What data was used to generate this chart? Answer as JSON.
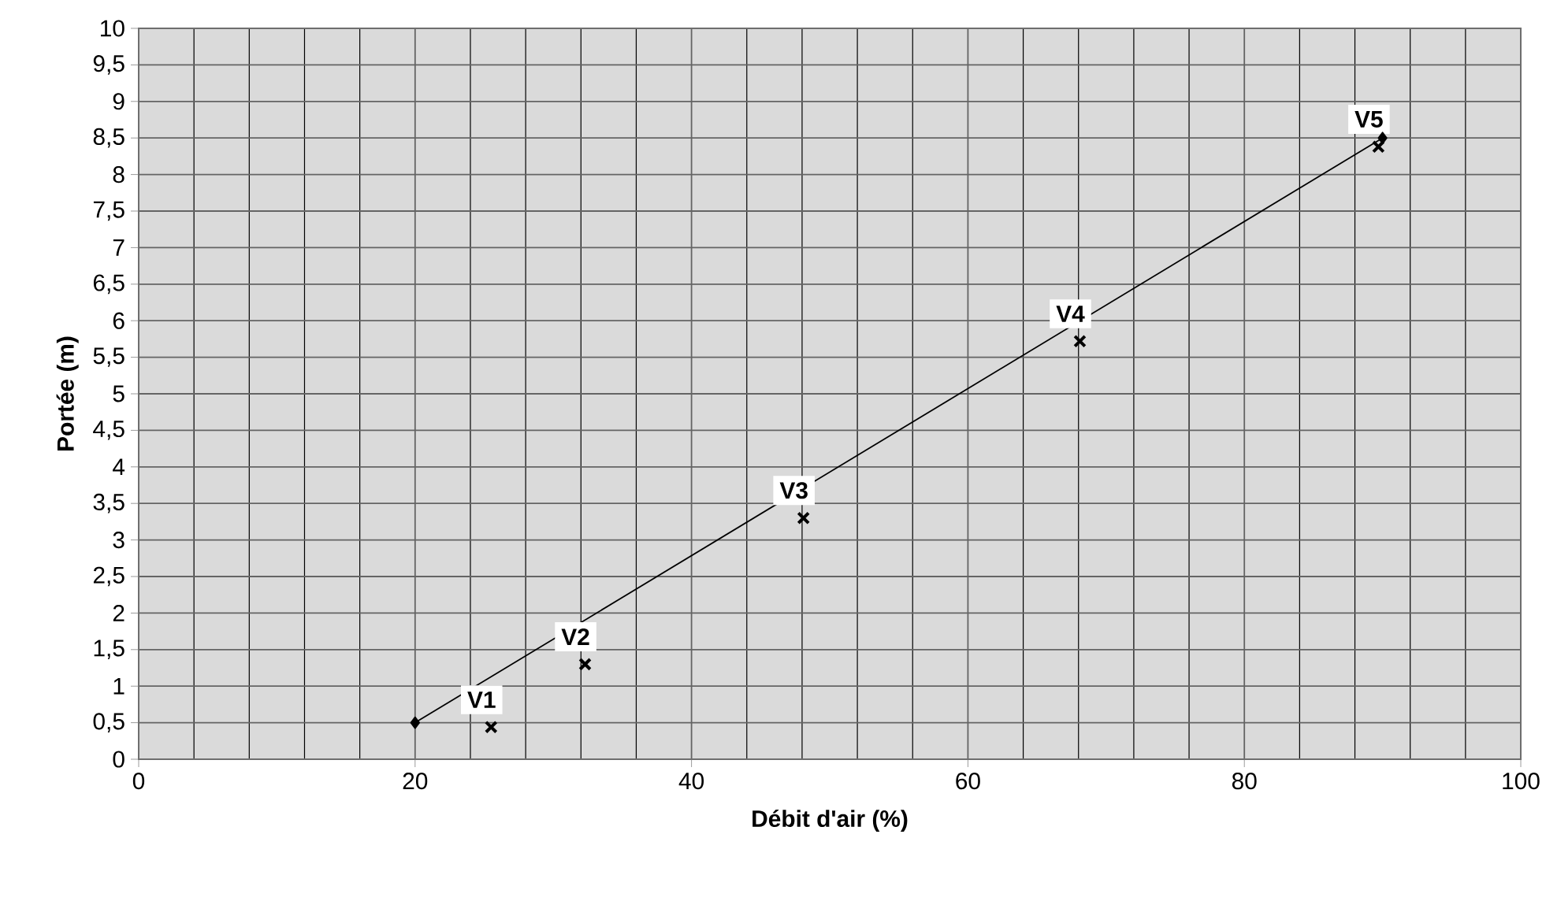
{
  "chart_data": {
    "type": "line",
    "xlabel": "Débit d'air (%)",
    "ylabel": "Portée (m)",
    "xlim": [
      0,
      100
    ],
    "ylim": [
      0,
      10
    ],
    "xticks": [
      0,
      20,
      40,
      60,
      80,
      100
    ],
    "yticks": [
      0,
      {
        "value": 0.5,
        "label": "0,5"
      },
      1,
      {
        "value": 1.5,
        "label": "1,5"
      },
      2,
      {
        "value": 2.5,
        "label": "2,5"
      },
      3,
      {
        "value": 3.5,
        "label": "3,5"
      },
      4,
      {
        "value": 4.5,
        "label": "4,5"
      },
      5,
      {
        "value": 5.5,
        "label": "5,5"
      },
      6,
      {
        "value": 6.5,
        "label": "6,5"
      },
      7,
      {
        "value": 7.5,
        "label": "7,5"
      },
      8,
      {
        "value": 8.5,
        "label": "8,5"
      },
      9,
      {
        "value": 9.5,
        "label": "9,5"
      },
      10
    ],
    "grid": true,
    "series": [
      {
        "color": "#000000",
        "marker": "diamond",
        "line_style": "solid",
        "x": [
          20,
          90
        ],
        "values": [
          0.5,
          8.5
        ]
      },
      {
        "type": "scatter",
        "color": "#000000",
        "marker": "cross",
        "x": [
          25.5,
          32.3,
          48.1,
          68.1,
          89.7
        ],
        "values": [
          0.44,
          1.3,
          3.3,
          5.72,
          8.38
        ]
      }
    ],
    "annotations": [
      {
        "text": "V1",
        "x": 25.5,
        "y": 0.44
      },
      {
        "text": "V2",
        "x": 32.3,
        "y": 1.3
      },
      {
        "text": "V3",
        "x": 48.1,
        "y": 3.3
      },
      {
        "text": "V4",
        "x": 68.1,
        "y": 5.72
      },
      {
        "text": "V5",
        "x": 89.7,
        "y": 8.38
      }
    ]
  }
}
